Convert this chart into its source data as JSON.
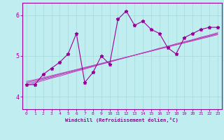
{
  "xlabel": "Windchill (Refroidissement éolien,°C)",
  "background_color": "#c0eef0",
  "line_color": "#990099",
  "reg_color": "#bb44bb",
  "grid_color": "#aadddd",
  "xlim": [
    -0.5,
    23.5
  ],
  "ylim": [
    3.7,
    6.3
  ],
  "yticks": [
    4,
    5,
    6
  ],
  "xticks": [
    0,
    1,
    2,
    3,
    4,
    5,
    6,
    7,
    8,
    9,
    10,
    11,
    12,
    13,
    14,
    15,
    16,
    17,
    18,
    19,
    20,
    21,
    22,
    23
  ],
  "data_line": [
    4.3,
    4.3,
    4.55,
    4.7,
    4.85,
    5.05,
    5.55,
    4.35,
    4.6,
    5.0,
    4.8,
    5.9,
    6.1,
    5.75,
    5.85,
    5.65,
    5.55,
    5.2,
    5.05,
    5.45,
    5.55,
    5.65,
    5.7,
    5.7
  ],
  "regression_lines": [
    [
      4.38,
      4.42,
      4.47,
      4.52,
      4.57,
      4.62,
      4.67,
      4.72,
      4.77,
      4.82,
      4.87,
      4.92,
      4.97,
      5.02,
      5.07,
      5.12,
      5.17,
      5.22,
      5.27,
      5.32,
      5.37,
      5.42,
      5.47,
      5.52
    ],
    [
      4.35,
      4.4,
      4.45,
      4.5,
      4.56,
      4.61,
      4.66,
      4.71,
      4.76,
      4.81,
      4.87,
      4.92,
      4.97,
      5.02,
      5.07,
      5.13,
      5.18,
      5.23,
      5.28,
      5.33,
      5.38,
      5.44,
      5.49,
      5.54
    ],
    [
      4.32,
      4.37,
      4.43,
      4.48,
      4.54,
      4.59,
      4.64,
      4.7,
      4.75,
      4.8,
      4.86,
      4.91,
      4.96,
      5.02,
      5.07,
      5.12,
      5.18,
      5.23,
      5.28,
      5.33,
      5.39,
      5.44,
      5.49,
      5.55
    ],
    [
      4.28,
      4.34,
      4.4,
      4.46,
      4.51,
      4.57,
      4.63,
      4.68,
      4.74,
      4.8,
      4.85,
      4.91,
      4.97,
      5.02,
      5.08,
      5.13,
      5.19,
      5.24,
      5.3,
      5.35,
      5.4,
      5.46,
      5.51,
      5.57
    ]
  ],
  "marker": "*",
  "markersize": 3.5,
  "linewidth": 0.8
}
